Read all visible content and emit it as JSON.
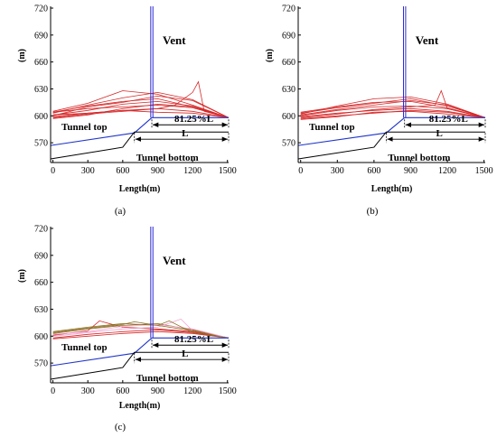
{
  "figure": {
    "x_axis_label": "Length(m)",
    "y_axis_label": "(m)",
    "annotations": {
      "vent": "Vent",
      "tunnel_top": "Tunnel top",
      "tunnel_bottom": "Tunnel bottom",
      "ratio": "81.25%L",
      "length": "L"
    },
    "colors": {
      "streamline": "#d62728",
      "streamline_c2": "#8c6d1f",
      "streamline_c3": "#f2a0d0",
      "tunnel_top": "#1f35c9",
      "vent": "#2b2bd6",
      "tunnel_bottom": "#000000"
    }
  },
  "chart_data": [
    {
      "type": "line",
      "panel": "(a)",
      "title": "",
      "xlabel": "Length(m)",
      "ylabel": "(m)",
      "xticks": [
        0,
        300,
        600,
        900,
        1200,
        1500
      ],
      "yticks": [
        570,
        600,
        630,
        660,
        690,
        720
      ],
      "xlim": [
        -20,
        1510
      ],
      "ylim": [
        548,
        722
      ],
      "grid": false,
      "tunnel_top": {
        "x": [
          -20,
          700,
          850,
          1510
        ],
        "y": [
          567,
          581,
          598,
          598
        ]
      },
      "tunnel_bottom": {
        "x": [
          -20,
          600,
          700,
          1510
        ],
        "y": [
          552,
          565,
          582,
          582
        ]
      },
      "vent": {
        "x": 850,
        "ymin": 598,
        "ymax": 722
      },
      "dimension_marks": {
        "ratio_x": [
          850,
          1510
        ],
        "length_x": [
          700,
          1510
        ]
      },
      "series": [
        {
          "x": [
            0,
            300,
            600,
            900,
            1200,
            1510
          ],
          "y": [
            598,
            602,
            605,
            608,
            605,
            598
          ]
        },
        {
          "x": [
            0,
            300,
            600,
            900,
            1200,
            1510
          ],
          "y": [
            600,
            610,
            615,
            622,
            617,
            598
          ]
        },
        {
          "x": [
            0,
            300,
            600,
            900,
            1200,
            1510
          ],
          "y": [
            603,
            612,
            620,
            626,
            618,
            598
          ]
        },
        {
          "x": [
            0,
            300,
            600,
            900,
            1200,
            1510
          ],
          "y": [
            601,
            606,
            613,
            616,
            611,
            598
          ]
        },
        {
          "x": [
            0,
            300,
            600,
            900,
            1200,
            1510
          ],
          "y": [
            597,
            601,
            608,
            613,
            610,
            598
          ]
        },
        {
          "x": [
            0,
            300,
            600,
            900,
            1200,
            1510
          ],
          "y": [
            605,
            614,
            628,
            624,
            612,
            598
          ]
        },
        {
          "x": [
            0,
            300,
            600,
            900,
            1200,
            1510
          ],
          "y": [
            604,
            608,
            610,
            612,
            609,
            598
          ]
        },
        {
          "x": [
            0,
            300,
            600,
            900,
            1200,
            1510
          ],
          "y": [
            599,
            603,
            606,
            604,
            603,
            598
          ]
        },
        {
          "x": [
            0,
            300,
            600,
            900,
            1050,
            1200,
            1250,
            1300,
            1510
          ],
          "y": [
            601,
            603,
            606,
            608,
            612,
            626,
            638,
            605,
            598
          ]
        },
        {
          "x": [
            0,
            300,
            600,
            900,
            1200,
            1510
          ],
          "y": [
            604,
            611,
            616,
            619,
            610,
            598
          ]
        }
      ]
    },
    {
      "type": "line",
      "panel": "(b)",
      "title": "",
      "xlabel": "Length(m)",
      "ylabel": "(m)",
      "xticks": [
        0,
        300,
        600,
        900,
        1200,
        1500
      ],
      "yticks": [
        570,
        600,
        630,
        660,
        690,
        720
      ],
      "xlim": [
        -20,
        1510
      ],
      "ylim": [
        548,
        722
      ],
      "grid": false,
      "tunnel_top": {
        "x": [
          -20,
          700,
          850,
          1510
        ],
        "y": [
          567,
          581,
          598,
          598
        ]
      },
      "tunnel_bottom": {
        "x": [
          -20,
          600,
          700,
          1510
        ],
        "y": [
          552,
          565,
          582,
          582
        ]
      },
      "vent": {
        "x": 850,
        "ymin": 598,
        "ymax": 722
      },
      "dimension_marks": {
        "ratio_x": [
          850,
          1510
        ],
        "length_x": [
          700,
          1510
        ]
      },
      "series": [
        {
          "x": [
            0,
            300,
            600,
            900,
            1200,
            1510
          ],
          "y": [
            599,
            603,
            606,
            608,
            605,
            598
          ]
        },
        {
          "x": [
            0,
            300,
            600,
            900,
            1200,
            1510
          ],
          "y": [
            601,
            607,
            612,
            617,
            612,
            598
          ]
        },
        {
          "x": [
            0,
            300,
            600,
            900,
            1200,
            1510
          ],
          "y": [
            603,
            609,
            614,
            619,
            611,
            598
          ]
        },
        {
          "x": [
            0,
            300,
            600,
            900,
            1200,
            1510
          ],
          "y": [
            597,
            600,
            603,
            606,
            604,
            598
          ]
        },
        {
          "x": [
            0,
            300,
            600,
            900,
            1200,
            1510
          ],
          "y": [
            602,
            611,
            619,
            621,
            613,
            598
          ]
        },
        {
          "x": [
            0,
            300,
            600,
            900,
            1200,
            1510
          ],
          "y": [
            600,
            606,
            610,
            611,
            608,
            598
          ]
        },
        {
          "x": [
            0,
            300,
            600,
            900,
            1100,
            1150,
            1200,
            1510
          ],
          "y": [
            598,
            602,
            607,
            610,
            612,
            628,
            608,
            598
          ]
        },
        {
          "x": [
            0,
            300,
            600,
            900,
            1200,
            1510
          ],
          "y": [
            604,
            610,
            615,
            616,
            609,
            598
          ]
        },
        {
          "x": [
            0,
            300,
            600,
            900,
            1200,
            1510
          ],
          "y": [
            596,
            599,
            604,
            605,
            602,
            598
          ]
        }
      ]
    },
    {
      "type": "line",
      "panel": "(c)",
      "title": "",
      "xlabel": "Length(m)",
      "ylabel": "(m)",
      "xticks": [
        0,
        300,
        600,
        900,
        1200,
        1500
      ],
      "yticks": [
        570,
        600,
        630,
        660,
        690,
        720
      ],
      "xlim": [
        -20,
        1510
      ],
      "ylim": [
        548,
        722
      ],
      "grid": false,
      "tunnel_top": {
        "x": [
          -20,
          700,
          850,
          1510
        ],
        "y": [
          567,
          581,
          598,
          598
        ]
      },
      "tunnel_bottom": {
        "x": [
          -20,
          600,
          700,
          1510
        ],
        "y": [
          552,
          565,
          582,
          582
        ]
      },
      "vent": {
        "x": 850,
        "ymin": 598,
        "ymax": 722
      },
      "dimension_marks": {
        "ratio_x": [
          850,
          1510
        ],
        "length_x": [
          700,
          1510
        ]
      },
      "series": [
        {
          "x": [
            0,
            300,
            400,
            600,
            900,
            1200,
            1510
          ],
          "y": [
            601,
            606,
            617,
            610,
            608,
            605,
            598
          ]
        },
        {
          "x": [
            0,
            300,
            600,
            900,
            1200,
            1510
          ],
          "y": [
            603,
            608,
            612,
            614,
            607,
            598
          ]
        },
        {
          "x": [
            0,
            300,
            600,
            900,
            1100,
            1200,
            1510
          ],
          "y": [
            600,
            604,
            608,
            610,
            619,
            606,
            598
          ]
        },
        {
          "x": [
            0,
            300,
            600,
            900,
            1200,
            1510
          ],
          "y": [
            598,
            602,
            605,
            607,
            604,
            598
          ]
        },
        {
          "x": [
            0,
            300,
            600,
            700,
            900,
            1200,
            1510
          ],
          "y": [
            604,
            609,
            613,
            616,
            612,
            606,
            598
          ]
        },
        {
          "x": [
            0,
            300,
            600,
            900,
            1200,
            1510
          ],
          "y": [
            602,
            605,
            611,
            613,
            608,
            598
          ]
        },
        {
          "x": [
            0,
            300,
            600,
            900,
            1200,
            1510
          ],
          "y": [
            597,
            600,
            603,
            605,
            603,
            598
          ]
        },
        {
          "x": [
            0,
            300,
            600,
            900,
            1000,
            1200,
            1510
          ],
          "y": [
            605,
            610,
            614,
            612,
            617,
            604,
            598
          ]
        }
      ]
    }
  ]
}
